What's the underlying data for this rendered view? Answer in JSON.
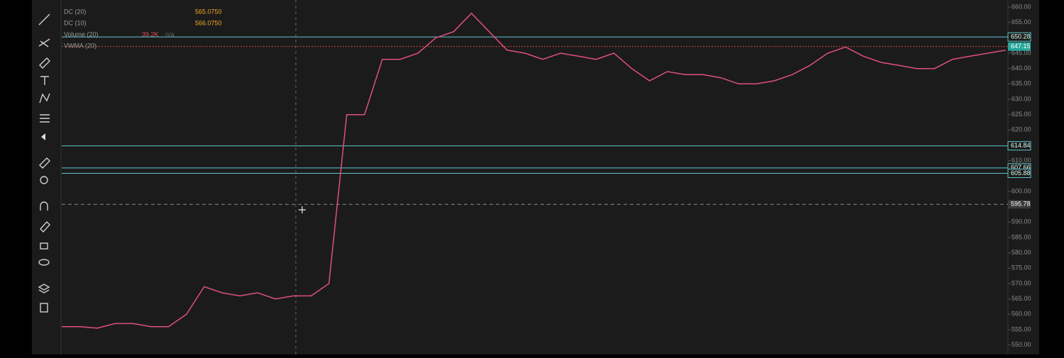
{
  "chart_data": {
    "type": "line",
    "legend": [
      {
        "name": "DC (20)",
        "value": "565.0750",
        "color": "#f5a623"
      },
      {
        "name": "DC (10)",
        "value": "566.0750",
        "color": "#f5a623"
      },
      {
        "name": "Volume (20)",
        "value": "39.2K",
        "extra": "n/a",
        "color": "#e0504f"
      },
      {
        "name": "VWMA (20)",
        "value": null,
        "color": "#3f51d6"
      }
    ],
    "series": [
      {
        "name": null,
        "color": "#e0507a",
        "values": [
          556,
          556,
          555.5,
          557,
          557,
          556,
          556,
          560,
          569,
          567,
          566,
          567,
          565,
          566,
          566,
          570,
          625,
          625,
          643,
          643,
          645,
          650,
          652,
          658,
          652,
          646,
          645,
          643,
          645,
          644,
          643,
          645,
          640,
          636,
          639,
          638,
          638,
          637,
          635,
          635,
          636,
          638,
          641,
          645,
          647,
          644,
          642,
          641,
          640,
          640,
          643,
          644,
          645,
          646
        ]
      }
    ],
    "levels": [
      {
        "value": 650.28,
        "color": "#5fc7cf",
        "style": "solid"
      },
      {
        "value": 647.15,
        "color": "#d9453f",
        "style": "dotted",
        "badge": "#26a69a"
      },
      {
        "value": 614.84,
        "color": "#5fc7cf",
        "style": "solid"
      },
      {
        "value": 607.66,
        "color": "#5fc7cf",
        "style": "solid"
      },
      {
        "value": 605.88,
        "color": "#5fc7cf",
        "style": "solid"
      },
      {
        "value": 595.78,
        "color": "#8a8a8a",
        "style": "dashed",
        "badge": "#3a3a3a"
      }
    ],
    "ylim": [
      550,
      660
    ],
    "yticks": [
      {
        "value": 550,
        "label": "550.00"
      },
      {
        "value": 555,
        "label": "555.00"
      },
      {
        "value": 560,
        "label": "560.00"
      },
      {
        "value": 565,
        "label": "565.00"
      },
      {
        "value": 570,
        "label": "570.00"
      },
      {
        "value": 575,
        "label": "575.00"
      },
      {
        "value": 580,
        "label": "580.00"
      },
      {
        "value": 585,
        "label": "585.00"
      },
      {
        "value": 590,
        "label": "590.00"
      },
      {
        "value": 595,
        "label": "595.00"
      },
      {
        "value": 600,
        "label": "600.00"
      },
      {
        "value": 605,
        "label": "605.00"
      },
      {
        "value": 610,
        "label": "610.00"
      },
      {
        "value": 615,
        "label": "615.00"
      },
      {
        "value": 620,
        "label": "620.00"
      },
      {
        "value": 625,
        "label": "625.00"
      },
      {
        "value": 630,
        "label": "630.00"
      },
      {
        "value": 635,
        "label": "635.00"
      },
      {
        "value": 640,
        "label": "640.00"
      },
      {
        "value": 645,
        "label": "645.00"
      },
      {
        "value": 650,
        "label": "650.00"
      },
      {
        "value": 655,
        "label": "655.00"
      },
      {
        "value": 660,
        "label": "660.00"
      }
    ],
    "grid": false
  }
}
